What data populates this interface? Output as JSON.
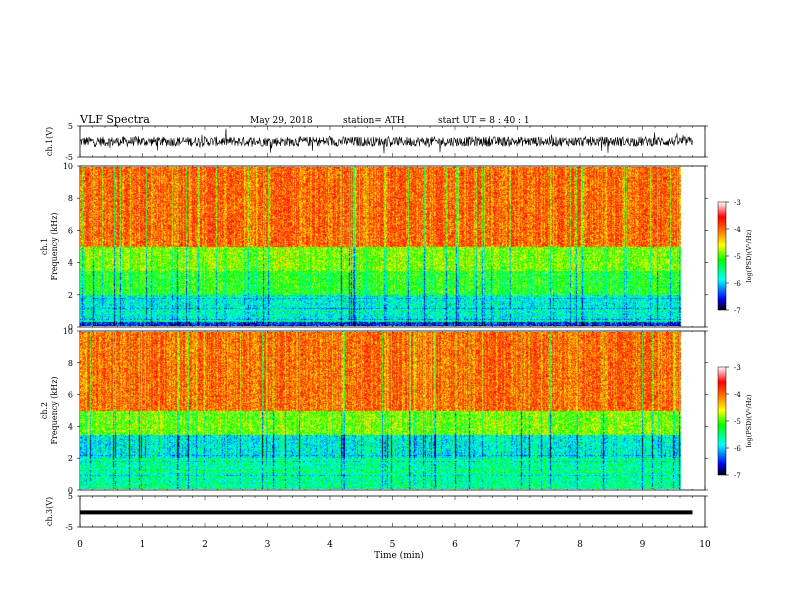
{
  "header": {
    "title": "VLF  Spectra",
    "date": "May 29, 2018",
    "station": "station= ATH",
    "start": "start  UT  =   8  : 40 : 1"
  },
  "chart_data": [
    {
      "type": "line",
      "panel": "ch1-waveform",
      "ylabel": "ch.1(V)",
      "ylim": [
        -5,
        5
      ],
      "y_ticks": [
        "5",
        "-5"
      ],
      "xlim": [
        0,
        10
      ],
      "signal_description": "dense noisy waveform, amplitude about +/-2 V around 0"
    },
    {
      "type": "heatmap",
      "panel": "ch1-spectrogram",
      "ylabel": "ch.1\nFrequency  (kHz)",
      "ylim": [
        0,
        10
      ],
      "y_ticks": [
        "0",
        "2",
        "4",
        "6",
        "8",
        "10"
      ],
      "xlim": [
        0,
        10
      ],
      "colorbar": {
        "label": "log(PSD)(V²/Hz)",
        "range": [
          -7,
          -3
        ],
        "ticks": [
          "-3",
          "-4",
          "-5",
          "-6",
          "-7"
        ]
      },
      "bands": [
        {
          "f_range": [
            0,
            0.3
          ],
          "log_psd": -6.5,
          "note": "dark stripe near 0 kHz"
        },
        {
          "f_range": [
            0.3,
            2.0
          ],
          "log_psd": -5.8,
          "note": "cyan/blue band with horizontal lines"
        },
        {
          "f_range": [
            2.0,
            3.5
          ],
          "log_psd": -5.2,
          "note": "cyan with green"
        },
        {
          "f_range": [
            3.5,
            5.0
          ],
          "log_psd": -4.9,
          "note": "green/yellow"
        },
        {
          "f_range": [
            5.0,
            10.0
          ],
          "log_psd": -4.0,
          "note": "orange/red with yellow"
        }
      ],
      "sferic_streaks": "numerous vertical dark streaks across the 0-10 min span"
    },
    {
      "type": "heatmap",
      "panel": "ch2-spectrogram",
      "ylabel": "ch.2\nFrequency  (kHz)",
      "ylim": [
        0,
        10
      ],
      "y_ticks": [
        "0",
        "2",
        "4",
        "6",
        "8",
        "10"
      ],
      "xlim": [
        0,
        10
      ],
      "colorbar": {
        "label": "log(PSD)(V²/Hz)",
        "range": [
          -7,
          -3
        ],
        "ticks": [
          "-3",
          "-4",
          "-5",
          "-6",
          "-7"
        ]
      },
      "bands": [
        {
          "f_range": [
            0,
            2.0
          ],
          "log_psd": -5.6,
          "note": "cyan/green with horizontal lines"
        },
        {
          "f_range": [
            2.0,
            3.5
          ],
          "log_psd": -5.8,
          "note": "blue/cyan band"
        },
        {
          "f_range": [
            3.5,
            5.0
          ],
          "log_psd": -4.9,
          "note": "green/yellow"
        },
        {
          "f_range": [
            5.0,
            10.0
          ],
          "log_psd": -4.0,
          "note": "orange/red with yellow"
        }
      ],
      "sferic_streaks": "numerous vertical dark streaks across the 0-10 min span"
    },
    {
      "type": "line",
      "panel": "ch3-waveform",
      "ylabel": "ch.3(V)",
      "ylim": [
        -5,
        5
      ],
      "y_ticks": [
        "5",
        "-5"
      ],
      "xlim": [
        0,
        10
      ],
      "signal_description": "near-constant trace just below 0 V"
    }
  ],
  "xaxis": {
    "label": "Time  (min)",
    "ticks": [
      "0",
      "1",
      "2",
      "3",
      "4",
      "5",
      "6",
      "7",
      "8",
      "9",
      "10"
    ]
  },
  "colors": {
    "scale": [
      "#000000",
      "#0000ff",
      "#00ffff",
      "#00ff00",
      "#ffff00",
      "#ff8000",
      "#ff0000",
      "#ffffff"
    ],
    "waveform": "#000000"
  }
}
